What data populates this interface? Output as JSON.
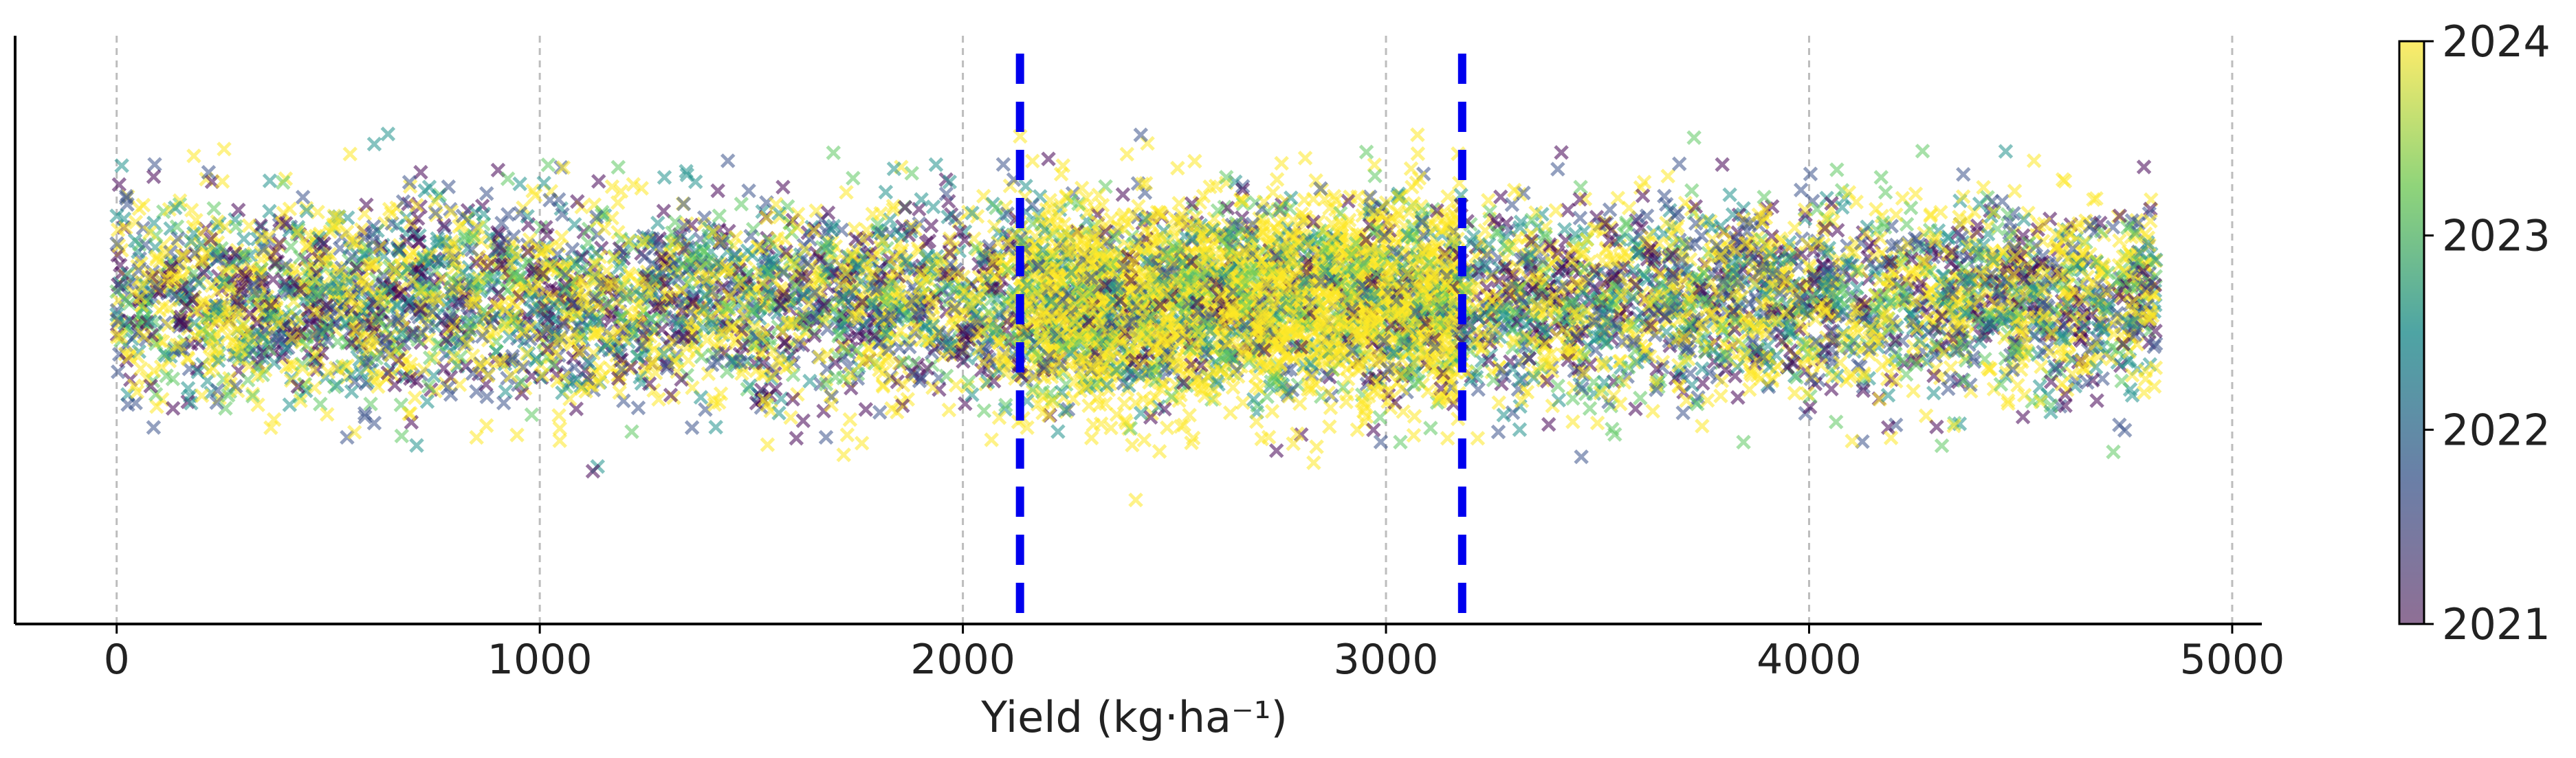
{
  "chart_data": {
    "type": "scatter",
    "title": "",
    "xlabel": "Yield (kg·ha⁻¹)",
    "ylabel": "",
    "xlim": [
      -240,
      5070
    ],
    "ylim": [
      0,
      1
    ],
    "xticks": [
      0,
      1000,
      2000,
      3000,
      4000,
      5000
    ],
    "x_tick_labels": [
      "0",
      "1000",
      "2000",
      "3000",
      "4000",
      "5000"
    ],
    "grid": "vertical dashed",
    "marker": "x",
    "marker_alpha": 0.55,
    "x_data_range": [
      0,
      4820
    ],
    "point_count_approx": 9000,
    "vertical_reference_lines": [
      {
        "x": 2135,
        "color": "#0000ee",
        "style": "dashed"
      },
      {
        "x": 3180,
        "color": "#0000ee",
        "style": "dashed"
      }
    ],
    "colorbar": {
      "label_values": [
        2021,
        2022,
        2023,
        2024
      ],
      "tick_labels": [
        "2021",
        "2022",
        "2023",
        "2024"
      ],
      "range": [
        2021,
        2024
      ],
      "colormap": "viridis",
      "colors": [
        "#440154",
        "#3b528b",
        "#21918c",
        "#5ec962",
        "#fde725"
      ]
    },
    "series_description": "Points spread across yield values 0–4820 kg·ha⁻¹ with random vertical jitter; density is highest and most yellow (year 2024) between the two reference lines."
  }
}
